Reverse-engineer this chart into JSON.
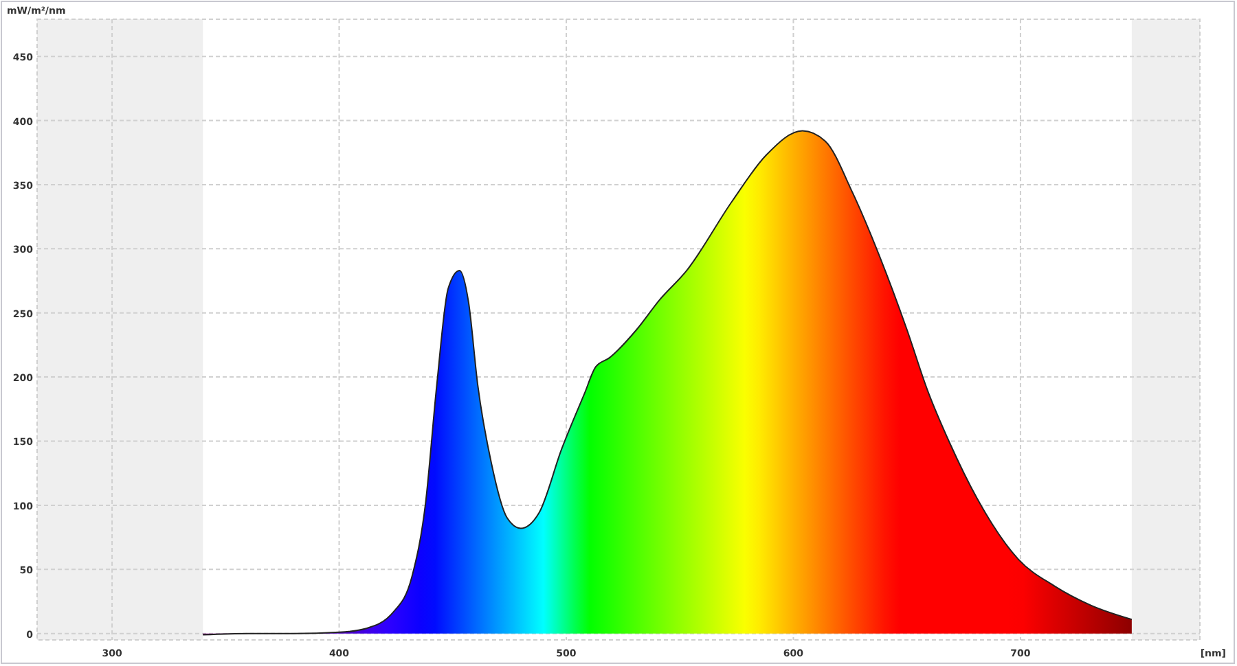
{
  "chart_data": {
    "type": "area",
    "xlabel": "[nm]",
    "ylabel": "mW/m²/nm",
    "xlim": [
      267,
      779
    ],
    "xticks": [
      300,
      400,
      500,
      600,
      700
    ],
    "ylim": [
      -5,
      479
    ],
    "yticks": [
      0,
      50,
      100,
      150,
      200,
      250,
      300,
      350,
      400,
      450
    ],
    "grid": true,
    "bands": [
      {
        "axis": "x",
        "from": 267,
        "to": 340,
        "color": "#efefef"
      },
      {
        "axis": "x",
        "from": 749,
        "to": 779,
        "color": "#efefef"
      }
    ],
    "series": [
      {
        "x": [
          340,
          360,
          380,
          400,
          412,
          424,
          432,
          438,
          443,
          448,
          453,
          457,
          461,
          467,
          474,
          480,
          488,
          498,
          508,
          513,
          519,
          531,
          541,
          553,
          573,
          588,
          604,
          614,
          626,
          638,
          650,
          659,
          669,
          681,
          699,
          715,
          731,
          749
        ],
        "values": [
          -1,
          0,
          0,
          1,
          4,
          17,
          44,
          101,
          194,
          269,
          283,
          258,
          194,
          133,
          90,
          82,
          94,
          144,
          187,
          208,
          215,
          237,
          260,
          283,
          337,
          373,
          392,
          384,
          344,
          294,
          237,
          190,
          148,
          105,
          58,
          37,
          22,
          11
        ]
      }
    ]
  }
}
